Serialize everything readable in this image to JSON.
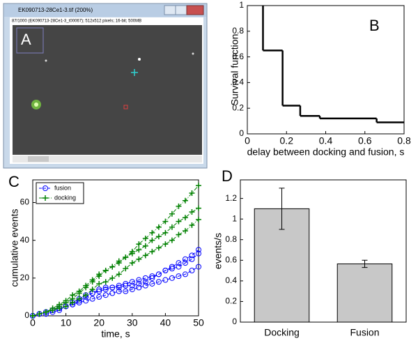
{
  "screenshot": {
    "window_title": "EK090713-28Ce1-3.tif (200%)",
    "status": "87/1000 (EK090713-28Ce1-3_t00067); 512x512 pixels; 16-bit; 500MB",
    "panel_label": "A"
  },
  "chart_data": [
    {
      "type": "step",
      "panel_label": "B",
      "x_label": "delay between docking and fusion, s",
      "y_label": "Survival function",
      "x": [
        0.08,
        0.08,
        0.18,
        0.27,
        0.37,
        0.66
      ],
      "values": [
        1,
        0.65,
        0.22,
        0.14,
        0.12,
        0.09
      ],
      "color": "#000000",
      "xlim": [
        0,
        0.8
      ],
      "ylim": [
        0,
        1
      ],
      "xticks": [
        0,
        0.2,
        0.4,
        0.6,
        0.8
      ],
      "yticks": [
        0,
        0.2,
        0.4,
        0.6,
        0.8,
        1
      ]
    },
    {
      "type": "line",
      "panel_label": "C",
      "x_label": "time, s",
      "y_label": "cumulative events",
      "legend": "upper left",
      "x": [
        0,
        2,
        4,
        6,
        8,
        10,
        12,
        14,
        16,
        18,
        20,
        22,
        24,
        26,
        28,
        30,
        32,
        34,
        36,
        38,
        40,
        42,
        44,
        46,
        48,
        50
      ],
      "series": [
        {
          "name": "fusion",
          "color": "#0000ff",
          "marker": "circle",
          "runs": [
            [
              0,
              1,
              2,
              3,
              4,
              5,
              6,
              7,
              8,
              9,
              10,
              11,
              12,
              13,
              13,
              14,
              15,
              16,
              17,
              18,
              19,
              20,
              21,
              22,
              24,
              26
            ],
            [
              0,
              1,
              2,
              3,
              4,
              5,
              6,
              8,
              10,
              12,
              13,
              14,
              15,
              15,
              16,
              16,
              17,
              18,
              20,
              22,
              24,
              25,
              26,
              28,
              30,
              33
            ],
            [
              0,
              1,
              1,
              2,
              3,
              5,
              7,
              9,
              11,
              12,
              14,
              15,
              15,
              16,
              17,
              18,
              19,
              20,
              21,
              22,
              24,
              26,
              28,
              30,
              32,
              35
            ]
          ]
        },
        {
          "name": "docking",
          "color": "#008000",
          "marker": "plus",
          "runs": [
            [
              0,
              1,
              2,
              3,
              4,
              5,
              7,
              9,
              11,
              14,
              17,
              18,
              20,
              22,
              25,
              28,
              30,
              32,
              34,
              36,
              38,
              40,
              43,
              45,
              48,
              51
            ],
            [
              0,
              1,
              2,
              3,
              5,
              7,
              9,
              12,
              15,
              18,
              21,
              24,
              26,
              29,
              31,
              33,
              35,
              37,
              40,
              42,
              44,
              47,
              50,
              52,
              55,
              57
            ],
            [
              0,
              1,
              2,
              4,
              6,
              8,
              11,
              13,
              16,
              19,
              22,
              24,
              26,
              28,
              31,
              34,
              38,
              41,
              44,
              47,
              50,
              54,
              58,
              61,
              65,
              69
            ]
          ]
        }
      ],
      "xlim": [
        0,
        50
      ],
      "ylim": [
        0,
        72
      ],
      "xticks": [
        0,
        10,
        20,
        30,
        40,
        50
      ],
      "yticks": [
        0,
        20,
        40,
        60
      ]
    },
    {
      "type": "bar",
      "panel_label": "D",
      "y_label": "events/s",
      "categories": [
        "Docking",
        "Fusion"
      ],
      "values": [
        1.1,
        0.565
      ],
      "errors": [
        0.2,
        0.035
      ],
      "color": "#c8c8c8",
      "ylim": [
        0,
        1.38
      ],
      "yticks": [
        0,
        0.2,
        0.4,
        0.6,
        0.8,
        1,
        1.2
      ]
    }
  ]
}
